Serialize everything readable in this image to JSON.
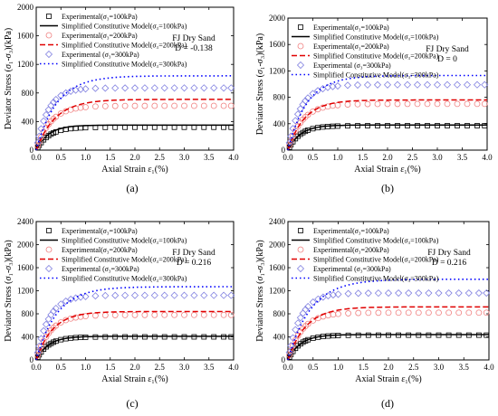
{
  "figure": {
    "panels": [
      {
        "caption": "(a)"
      },
      {
        "caption": "(b)"
      },
      {
        "caption": "(c)"
      },
      {
        "caption": "(d)"
      }
    ]
  },
  "chart_data": [
    {
      "type": "scatter",
      "panel_label": "(a)",
      "xlabel": "Axial Strain ε₁(%)",
      "ylabel": "Deviator Stress (σ₁-σ₃)(kPa)",
      "xlim": [
        0,
        4.0
      ],
      "ylim": [
        0,
        2000
      ],
      "x_ticks": [
        "0.0",
        "0.5",
        "1.0",
        "1.5",
        "2.0",
        "2.5",
        "3.0",
        "3.5",
        "4.0"
      ],
      "y_ticks": [
        "0",
        "400",
        "800",
        "1200",
        "1600",
        "2000"
      ],
      "annotation": [
        "FJ Dry Sand",
        "D = -0.138"
      ],
      "legend": [
        "Experimental(σ₃=100kPa)",
        "Simplified Constitutive Model(σ₃=100kPa)",
        "Experimental(σ₃=200kPa)",
        "Simplified Constitutive Model(σ₃=200kPa)",
        "Experimental (σ₃=300kPa)",
        "Simplified Constitutive Model(σ₃=300kPa)"
      ],
      "legend_placement": "top",
      "series": [
        {
          "name": "Experimental(σ₃=100kPa)",
          "kind": "marker",
          "marker": "square",
          "color": "#000000",
          "peak": 320,
          "rate": 4.0
        },
        {
          "name": "Simplified Constitutive Model(σ₃=100kPa)",
          "kind": "line",
          "dash": "solid",
          "color": "#000000",
          "peak": 350,
          "rate": 4.0
        },
        {
          "name": "Experimental(σ₃=200kPa)",
          "kind": "marker",
          "marker": "circle",
          "color": "#f08080",
          "peak": 620,
          "rate": 3.5
        },
        {
          "name": "Simplified Constitutive Model(σ₃=200kPa)",
          "kind": "line",
          "dash": "dash",
          "color": "#e00000",
          "peak": 710,
          "rate": 2.6
        },
        {
          "name": "Experimental (σ₃=300kPa)",
          "kind": "marker",
          "marker": "diamond",
          "color": "#8080e0",
          "peak": 870,
          "rate": 4.2
        },
        {
          "name": "Simplified Constitutive Model(σ₃=300kPa)",
          "kind": "line",
          "dash": "dot",
          "color": "#0000ff",
          "peak": 1040,
          "rate": 2.4
        }
      ]
    },
    {
      "type": "scatter",
      "panel_label": "(b)",
      "xlabel": "Axial Strain ε₁(%)",
      "ylabel": "Deviator Stress (σ₁-σ₃)(kPa)",
      "xlim": [
        0,
        4.0
      ],
      "ylim": [
        0,
        2000
      ],
      "x_ticks": [
        "0.0",
        "0.5",
        "1.0",
        "1.5",
        "2.0",
        "2.5",
        "3.0",
        "3.5",
        "4.0"
      ],
      "y_ticks": [
        "0",
        "400",
        "800",
        "1200",
        "1600",
        "2000"
      ],
      "annotation": [
        "FJ Dry Sand",
        "D = 0"
      ],
      "legend": [
        "Experimental(σ₃=100kPa)",
        "Simplified Constitutive Model(σ₃=100kPa)",
        "Experimental(σ₃=200kPa)",
        "Simplified Constitutive Model(σ₃=200kPa)",
        "Experimental (σ₃=300kPa)",
        "Simplified Constitutive Model(σ₃=300kPa)"
      ],
      "legend_placement": "top",
      "series": [
        {
          "name": "Experimental(σ₃=100kPa)",
          "kind": "marker",
          "marker": "square",
          "color": "#000000",
          "peak": 370,
          "rate": 4.2
        },
        {
          "name": "Simplified Constitutive Model(σ₃=100kPa)",
          "kind": "line",
          "dash": "solid",
          "color": "#000000",
          "peak": 380,
          "rate": 4.0
        },
        {
          "name": "Experimental(σ₃=200kPa)",
          "kind": "marker",
          "marker": "circle",
          "color": "#f08080",
          "peak": 700,
          "rate": 3.6
        },
        {
          "name": "Simplified Constitutive Model(σ₃=200kPa)",
          "kind": "line",
          "dash": "dash",
          "color": "#e00000",
          "peak": 760,
          "rate": 3.0
        },
        {
          "name": "Experimental (σ₃=300kPa)",
          "kind": "marker",
          "marker": "diamond",
          "color": "#8080e0",
          "peak": 990,
          "rate": 4.0
        },
        {
          "name": "Simplified Constitutive Model(σ₃=300kPa)",
          "kind": "line",
          "dash": "dot",
          "color": "#0000ff",
          "peak": 1130,
          "rate": 2.6
        }
      ]
    },
    {
      "type": "scatter",
      "panel_label": "(c)",
      "xlabel": "Axial Strain ε₁(%)",
      "ylabel": "Deviator Stress (σ₁-σ₃)(kPa)",
      "xlim": [
        0,
        4.0
      ],
      "ylim": [
        0,
        2400
      ],
      "x_ticks": [
        "0.0",
        "0.5",
        "1.0",
        "1.5",
        "2.0",
        "2.5",
        "3.0",
        "3.5",
        "4.0"
      ],
      "y_ticks": [
        "0",
        "400",
        "800",
        "1200",
        "1600",
        "2000",
        "2400"
      ],
      "annotation": [
        "FJ Dry Sand",
        "D = 0.216"
      ],
      "legend": [
        "Experimental(σ₃=100kPa)",
        "Simplified Constitutive Model(σ₃=100kPa)",
        "Experimental(σ₃=200kPa)",
        "Simplified Constitutive Model(σ₃=200kPa)",
        "Experimental (σ₃=300kPa)",
        "Simplified Constitutive Model(σ₃=300kPa)"
      ],
      "legend_placement": "top",
      "series": [
        {
          "name": "Experimental(σ₃=100kPa)",
          "kind": "marker",
          "marker": "square",
          "color": "#000000",
          "peak": 400,
          "rate": 4.2
        },
        {
          "name": "Simplified Constitutive Model(σ₃=100kPa)",
          "kind": "line",
          "dash": "solid",
          "color": "#000000",
          "peak": 410,
          "rate": 4.0
        },
        {
          "name": "Experimental(σ₃=200kPa)",
          "kind": "marker",
          "marker": "circle",
          "color": "#f08080",
          "peak": 780,
          "rate": 3.6
        },
        {
          "name": "Simplified Constitutive Model(σ₃=200kPa)",
          "kind": "line",
          "dash": "dash",
          "color": "#e00000",
          "peak": 840,
          "rate": 3.0
        },
        {
          "name": "Experimental (σ₃=300kPa)",
          "kind": "marker",
          "marker": "diamond",
          "color": "#8080e0",
          "peak": 1120,
          "rate": 4.0
        },
        {
          "name": "Simplified Constitutive Model(σ₃=300kPa)",
          "kind": "line",
          "dash": "dot",
          "color": "#0000ff",
          "peak": 1270,
          "rate": 2.4
        }
      ]
    },
    {
      "type": "scatter",
      "panel_label": "(d)",
      "xlabel": "Axial Strain ε₁(%)",
      "ylabel": "Deviator Stress (σ₁-σ₃)(kPa)",
      "xlim": [
        0,
        4.0
      ],
      "ylim": [
        0,
        2400
      ],
      "x_ticks": [
        "0.0",
        "0.5",
        "1.0",
        "1.5",
        "2.0",
        "2.5",
        "3.0",
        "3.5",
        "4.0"
      ],
      "y_ticks": [
        "0",
        "400",
        "800",
        "1200",
        "1600",
        "2000",
        "2400"
      ],
      "annotation": [
        "FJ Dry Sand",
        "D = 0.216"
      ],
      "legend": [
        "Experimental(σ₃=100kPa)",
        "Simplified Constitutive Model(σ₃=100kPa)",
        "Experimental(σ₃=200kPa)",
        "Simplified Constitutive Model(σ₃=200kPa)",
        "Experimental (σ₃=300kPa)",
        "Simplified Constitutive Model(σ₃=300kPa)"
      ],
      "legend_placement": "top",
      "series": [
        {
          "name": "Experimental(σ₃=100kPa)",
          "kind": "marker",
          "marker": "square",
          "color": "#000000",
          "peak": 430,
          "rate": 4.2
        },
        {
          "name": "Simplified Constitutive Model(σ₃=100kPa)",
          "kind": "line",
          "dash": "solid",
          "color": "#000000",
          "peak": 440,
          "rate": 4.0
        },
        {
          "name": "Experimental(σ₃=200kPa)",
          "kind": "marker",
          "marker": "circle",
          "color": "#f08080",
          "peak": 820,
          "rate": 3.6
        },
        {
          "name": "Simplified Constitutive Model(σ₃=200kPa)",
          "kind": "line",
          "dash": "dash",
          "color": "#e00000",
          "peak": 920,
          "rate": 2.8
        },
        {
          "name": "Experimental (σ₃=300kPa)",
          "kind": "marker",
          "marker": "diamond",
          "color": "#8080e0",
          "peak": 1160,
          "rate": 4.0
        },
        {
          "name": "Simplified Constitutive Model(σ₃=300kPa)",
          "kind": "line",
          "dash": "dot",
          "color": "#0000ff",
          "peak": 1400,
          "rate": 2.2
        }
      ]
    }
  ]
}
